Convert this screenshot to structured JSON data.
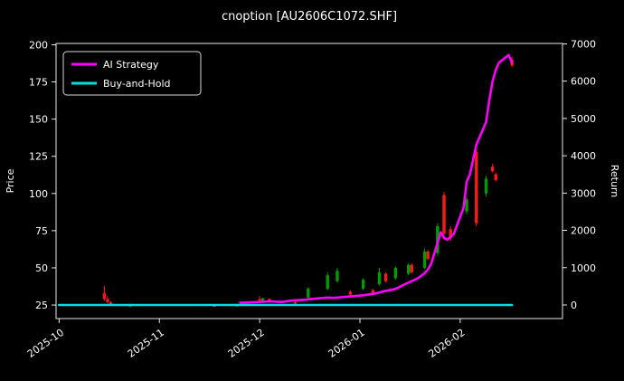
{
  "chart_data": {
    "type": "candlestick",
    "title": "cnoption [AU2606C1072.SHF]",
    "ylabel": "Price",
    "ylabel_right": "Return",
    "x_tick_labels": [
      "2025-10",
      "2025-11",
      "2025-12",
      "2026-01",
      "2026-02"
    ],
    "price_ticks": [
      25,
      50,
      75,
      100,
      125,
      150,
      175,
      200
    ],
    "return_ticks": [
      0,
      1000,
      2000,
      3000,
      4000,
      5000,
      6000,
      7000
    ],
    "xlim_months": [
      -0.03,
      5.02
    ],
    "ylim_price": [
      15.9,
      200.9
    ],
    "ylim_return": [
      -364,
      7011
    ],
    "grid": false,
    "legend_position": "upper-left",
    "colors": {
      "background": "#000000",
      "text": "#ffffff",
      "axis": "#ffffff",
      "up": "#009b00",
      "down": "#ff1a1a"
    },
    "candles": [
      [
        "2025-10-15",
        33,
        38,
        28,
        29
      ],
      [
        "2025-10-16",
        29,
        31,
        26,
        27
      ],
      [
        "2025-10-17",
        27,
        27.5,
        24.5,
        25
      ],
      [
        "2025-10-23",
        24,
        26,
        23.5,
        25.5
      ],
      [
        "2025-11-18",
        24.5,
        25.5,
        23.5,
        24
      ],
      [
        "2025-11-25",
        24,
        26,
        24,
        25.5
      ],
      [
        "2025-12-01",
        29,
        31,
        27.5,
        28
      ],
      [
        "2025-12-02",
        28,
        30,
        27,
        29.5
      ],
      [
        "2025-12-04",
        29,
        29.5,
        27.5,
        28
      ],
      [
        "2025-12-12",
        27,
        28,
        25.5,
        26
      ],
      [
        "2025-12-16",
        30,
        37,
        29,
        36
      ],
      [
        "2025-12-22",
        36,
        47,
        35,
        45
      ],
      [
        "2025-12-25",
        41,
        50,
        40,
        48
      ],
      [
        "2025-12-29",
        34,
        35,
        31,
        32
      ],
      [
        "2026-01-02",
        36,
        43,
        35,
        42
      ],
      [
        "2026-01-05",
        35,
        36,
        32,
        33
      ],
      [
        "2026-01-07",
        39,
        50,
        38,
        47
      ],
      [
        "2026-01-09",
        46,
        47,
        40,
        41
      ],
      [
        "2026-01-12",
        43,
        51,
        42,
        50
      ],
      [
        "2026-01-16",
        46,
        53,
        45,
        52
      ],
      [
        "2026-01-17",
        52,
        53,
        46,
        47
      ],
      [
        "2026-01-21",
        50,
        63,
        49,
        61
      ],
      [
        "2026-01-22",
        61,
        62,
        55,
        56
      ],
      [
        "2026-01-25",
        60,
        80,
        58,
        78
      ],
      [
        "2026-01-27",
        99,
        101,
        71,
        73
      ],
      [
        "2026-01-29",
        76,
        78,
        68,
        70
      ],
      [
        "2026-02-03",
        88,
        98,
        86,
        96
      ],
      [
        "2026-02-06",
        128,
        130,
        78,
        80
      ],
      [
        "2026-02-09",
        100,
        112,
        98,
        110
      ],
      [
        "2026-02-11",
        118,
        120,
        114,
        115
      ],
      [
        "2026-02-12",
        113,
        114,
        108,
        109
      ],
      [
        "2026-02-17",
        190,
        192,
        185,
        186
      ]
    ],
    "series": [
      {
        "name": "AI Strategy",
        "color": "#ff00ff",
        "axis": "return",
        "points": [
          [
            "2025-11-26",
            60
          ],
          [
            "2025-12-01",
            80
          ],
          [
            "2025-12-04",
            100
          ],
          [
            "2025-12-08",
            80
          ],
          [
            "2025-12-11",
            120
          ],
          [
            "2025-12-15",
            140
          ],
          [
            "2025-12-18",
            170
          ],
          [
            "2025-12-22",
            200
          ],
          [
            "2025-12-24",
            190
          ],
          [
            "2025-12-29",
            230
          ],
          [
            "2026-01-02",
            260
          ],
          [
            "2026-01-06",
            310
          ],
          [
            "2026-01-08",
            360
          ],
          [
            "2026-01-12",
            430
          ],
          [
            "2026-01-14",
            520
          ],
          [
            "2026-01-16",
            600
          ],
          [
            "2026-01-19",
            720
          ],
          [
            "2026-01-21",
            850
          ],
          [
            "2026-01-22",
            950
          ],
          [
            "2026-01-23",
            1100
          ],
          [
            "2026-01-26",
            1950
          ],
          [
            "2026-01-27",
            1800
          ],
          [
            "2026-01-28",
            1750
          ],
          [
            "2026-01-30",
            1900
          ],
          [
            "2026-02-02",
            2600
          ],
          [
            "2026-02-03",
            3300
          ],
          [
            "2026-02-04",
            3500
          ],
          [
            "2026-02-05",
            3900
          ],
          [
            "2026-02-06",
            4300
          ],
          [
            "2026-02-09",
            4900
          ],
          [
            "2026-02-10",
            5500
          ],
          [
            "2026-02-11",
            6000
          ],
          [
            "2026-02-12",
            6300
          ],
          [
            "2026-02-13",
            6500
          ],
          [
            "2026-02-16",
            6700
          ],
          [
            "2026-02-17",
            6500
          ]
        ]
      },
      {
        "name": "Buy-and-Hold",
        "color": "#00e0e0",
        "axis": "return",
        "points": [
          [
            "2025-10-01",
            0
          ],
          [
            "2026-02-17",
            0
          ]
        ]
      }
    ]
  }
}
